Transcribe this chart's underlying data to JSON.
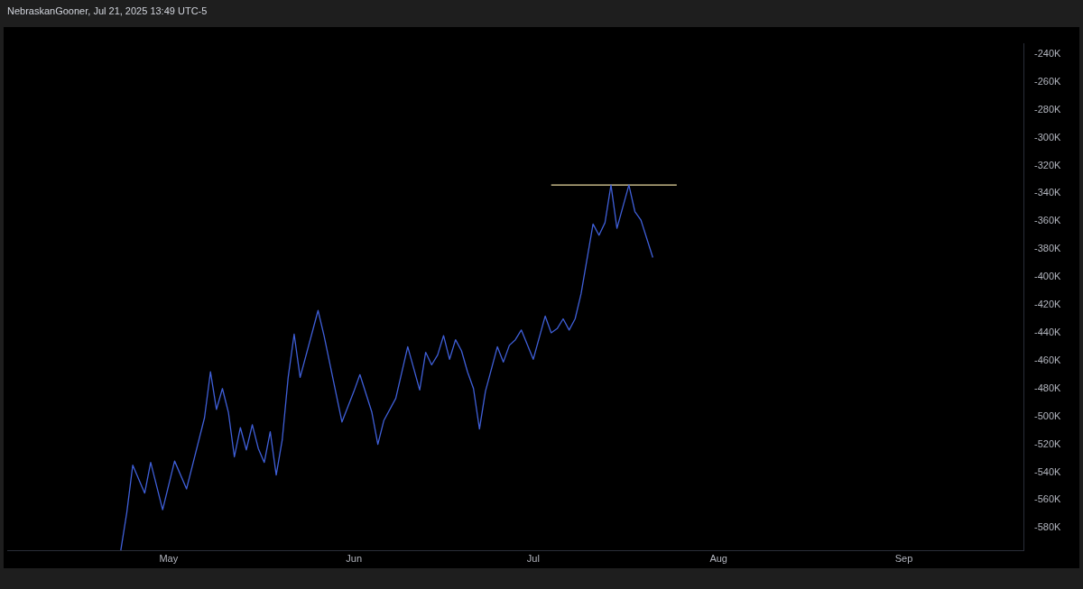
{
  "chart_data": {
    "type": "line",
    "annotations": [
      "NebraskanGooner, Jul 21, 2025 13:49 UTC-5"
    ],
    "xlim": [
      "2025-04-04",
      "2025-09-21"
    ],
    "xticks": [
      {
        "value": "2025-05-01",
        "label": "May"
      },
      {
        "value": "2025-06-01",
        "label": "Jun"
      },
      {
        "value": "2025-07-01",
        "label": "Jul"
      },
      {
        "value": "2025-08-01",
        "label": "Aug"
      },
      {
        "value": "2025-09-01",
        "label": "Sep"
      }
    ],
    "ylim": [
      -596.5,
      -232.7
    ],
    "yticks": [
      {
        "value": -240,
        "label": "-240K"
      },
      {
        "value": -260,
        "label": "-260K"
      },
      {
        "value": -280,
        "label": "-280K"
      },
      {
        "value": -300,
        "label": "-300K"
      },
      {
        "value": -320,
        "label": "-320K"
      },
      {
        "value": -340,
        "label": "-340K"
      },
      {
        "value": -360,
        "label": "-360K"
      },
      {
        "value": -380,
        "label": "-380K"
      },
      {
        "value": -400,
        "label": "-400K"
      },
      {
        "value": -420,
        "label": "-420K"
      },
      {
        "value": -440,
        "label": "-440K"
      },
      {
        "value": -460,
        "label": "-460K"
      },
      {
        "value": -480,
        "label": "-480K"
      },
      {
        "value": -500,
        "label": "-500K"
      },
      {
        "value": -520,
        "label": "-520K"
      },
      {
        "value": -540,
        "label": "-540K"
      },
      {
        "value": -560,
        "label": "-560K"
      },
      {
        "value": -580,
        "label": "-580K"
      }
    ],
    "grid": false,
    "marker": "none",
    "line_style": "solid",
    "series": [
      {
        "color": "#3f5fd8",
        "x": [
          "2025-04-23",
          "2025-04-24",
          "2025-04-25",
          "2025-04-27",
          "2025-04-28",
          "2025-04-30",
          "2025-05-02",
          "2025-05-04",
          "2025-05-07",
          "2025-05-08",
          "2025-05-09",
          "2025-05-10",
          "2025-05-11",
          "2025-05-12",
          "2025-05-13",
          "2025-05-14",
          "2025-05-15",
          "2025-05-16",
          "2025-05-17",
          "2025-05-18",
          "2025-05-19",
          "2025-05-20",
          "2025-05-21",
          "2025-05-22",
          "2025-05-23",
          "2025-05-26",
          "2025-05-27",
          "2025-05-30",
          "2025-06-01",
          "2025-06-02",
          "2025-06-04",
          "2025-06-05",
          "2025-06-06",
          "2025-06-08",
          "2025-06-10",
          "2025-06-12",
          "2025-06-13",
          "2025-06-14",
          "2025-06-15",
          "2025-06-16",
          "2025-06-17",
          "2025-06-18",
          "2025-06-19",
          "2025-06-20",
          "2025-06-21",
          "2025-06-22",
          "2025-06-23",
          "2025-06-25",
          "2025-06-26",
          "2025-06-27",
          "2025-06-28",
          "2025-06-29",
          "2025-07-01",
          "2025-07-03",
          "2025-07-04",
          "2025-07-05",
          "2025-07-06",
          "2025-07-07",
          "2025-07-08",
          "2025-07-09",
          "2025-07-11",
          "2025-07-12",
          "2025-07-13",
          "2025-07-14",
          "2025-07-15",
          "2025-07-17",
          "2025-07-18",
          "2025-07-19",
          "2025-07-21"
        ],
        "values": [
          -596,
          -569,
          -535,
          -555,
          -533,
          -567,
          -532,
          -552,
          -501,
          -468,
          -495,
          -480,
          -497,
          -529,
          -508,
          -524,
          -506,
          -523,
          -533,
          -511,
          -542,
          -517,
          -472,
          -441,
          -472,
          -424,
          -442,
          -504,
          -482,
          -470,
          -497,
          -520,
          -503,
          -487,
          -450,
          -481,
          -454,
          -463,
          -456,
          -442,
          -459,
          -445,
          -453,
          -468,
          -480,
          -509,
          -482,
          -450,
          -461,
          -449,
          -445,
          -438,
          -459,
          -428,
          -440,
          -437,
          -430,
          -438,
          -430,
          -412,
          -362,
          -370,
          -361,
          -334,
          -365,
          -334,
          -353,
          -359,
          -386
        ]
      },
      {
        "type": "line",
        "color": "#e8d9a0",
        "x": [
          "2025-07-04",
          "2025-07-25"
        ],
        "values": [
          -334,
          -334
        ]
      }
    ]
  }
}
